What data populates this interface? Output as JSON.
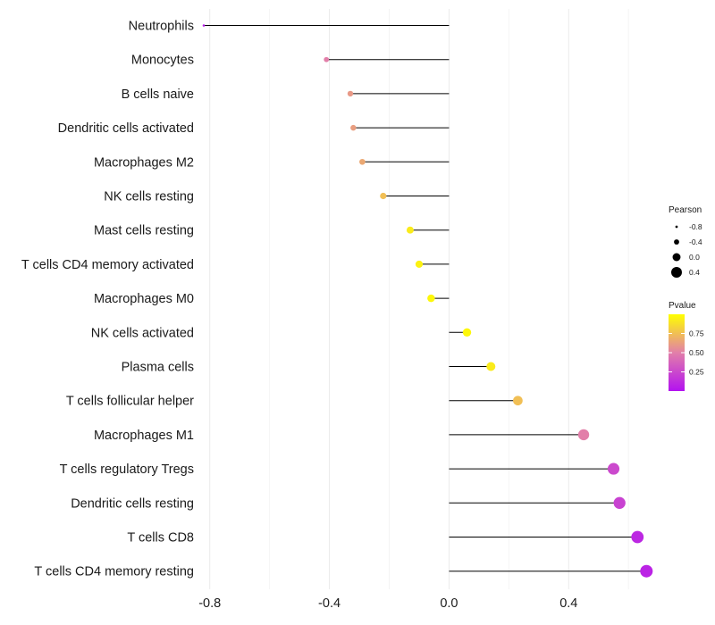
{
  "chart_data": {
    "type": "lollipop",
    "title": "",
    "xlabel": "",
    "ylabel": "",
    "xlim": [
      -0.82,
      0.68
    ],
    "x_ticks": [
      -0.8,
      -0.4,
      0.0,
      0.4
    ],
    "x_tick_labels": [
      "-0.8",
      "-0.4",
      "0.0",
      "0.4"
    ],
    "grid": true,
    "categories": [
      "Neutrophils",
      "Monocytes",
      "B cells naive",
      "Dendritic cells activated",
      "Macrophages M2",
      "NK cells resting",
      "Mast cells resting",
      "T cells CD4 memory activated",
      "Macrophages M0",
      "NK cells activated",
      "Plasma cells",
      "T cells follicular helper",
      "Macrophages M1",
      "T cells regulatory  Tregs ",
      "Dendritic cells resting",
      "T cells CD8",
      "T cells CD4 memory resting"
    ],
    "pearson": [
      -0.82,
      -0.41,
      -0.33,
      -0.32,
      -0.29,
      -0.22,
      -0.13,
      -0.1,
      -0.06,
      0.06,
      0.14,
      0.23,
      0.45,
      0.55,
      0.57,
      0.63,
      0.66
    ],
    "pvalue": [
      0.05,
      0.5,
      0.6,
      0.62,
      0.66,
      0.75,
      0.92,
      0.95,
      0.97,
      0.97,
      0.92,
      0.75,
      0.5,
      0.25,
      0.22,
      0.1,
      0.08
    ],
    "legend": {
      "position": "right",
      "size": {
        "title": "Pearson",
        "values": [
          -0.8,
          -0.4,
          0.0,
          0.4
        ],
        "labels": [
          "-0.8",
          "-0.4",
          "0.0",
          "0.4"
        ]
      },
      "color": {
        "title": "Pvalue",
        "ticks": [
          0.25,
          0.5,
          0.75
        ],
        "labels": [
          "0.25",
          "0.50",
          "0.75"
        ],
        "range": [
          0.0,
          1.0
        ],
        "low_color": "#b312f0",
        "mid_color": "#e27fa9",
        "high_color": "#ffff00"
      }
    },
    "colors": {
      "segment": "#000000",
      "grid": "#ebebeb",
      "background": "#ffffff"
    }
  }
}
